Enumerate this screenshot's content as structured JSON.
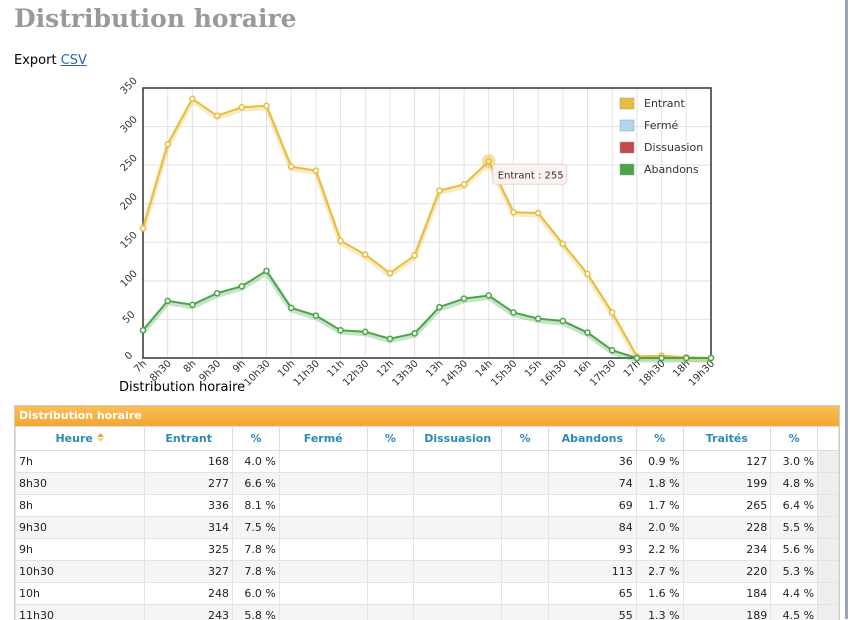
{
  "page": {
    "title": "Distribution horaire",
    "export_label": "Export",
    "export_link": "CSV"
  },
  "chart_data": {
    "type": "line",
    "x_label": "Distribution horaire",
    "tooltip": "Entrant : 255",
    "categories": [
      "7h",
      "8h30",
      "8h",
      "9h30",
      "9h",
      "10h30",
      "10h",
      "11h30",
      "11h",
      "12h30",
      "12h",
      "13h30",
      "13h",
      "14h30",
      "14h",
      "15h30",
      "15h",
      "16h30",
      "16h",
      "17h30",
      "17h",
      "18h30",
      "18h",
      "19h30"
    ],
    "series": [
      {
        "name": "Entrant",
        "color": "#e8bd3c",
        "values": [
          168,
          277,
          336,
          314,
          325,
          327,
          248,
          243,
          152,
          134,
          110,
          133,
          217,
          225,
          255,
          189,
          188,
          148,
          109,
          59,
          2,
          3,
          1,
          0
        ]
      },
      {
        "name": "Fermé",
        "color": "#b3d6f2",
        "values": [
          null,
          null,
          null,
          null,
          null,
          null,
          null,
          null,
          null,
          null,
          null,
          null,
          null,
          null,
          null,
          null,
          null,
          null,
          null,
          null,
          null,
          null,
          null,
          null
        ]
      },
      {
        "name": "Dissuasion",
        "color": "#c8474a",
        "values": [
          null,
          null,
          null,
          null,
          null,
          null,
          null,
          null,
          null,
          null,
          null,
          null,
          null,
          null,
          null,
          null,
          null,
          null,
          null,
          null,
          null,
          null,
          null,
          null
        ]
      },
      {
        "name": "Abandons",
        "color": "#4aa54a",
        "values": [
          36,
          74,
          69,
          84,
          93,
          113,
          65,
          55,
          36,
          34,
          25,
          32,
          66,
          77,
          81,
          59,
          51,
          48,
          33,
          10,
          0,
          0,
          0,
          0
        ]
      }
    ],
    "ylim": [
      0,
      350
    ],
    "yticks": [
      0,
      50,
      100,
      150,
      200,
      250,
      300,
      350
    ],
    "grid": true,
    "legend": "top-right"
  },
  "table": {
    "title": "Distribution horaire",
    "headers": [
      "Heure",
      "Entrant",
      "%",
      "Fermé",
      "%",
      "Dissuasion",
      "%",
      "Abandons",
      "%",
      "Traités",
      "%"
    ],
    "rows": [
      [
        "7h",
        168,
        "4.0 %",
        null,
        null,
        null,
        null,
        36,
        "0.9 %",
        127,
        "3.0 %"
      ],
      [
        "8h30",
        277,
        "6.6 %",
        null,
        null,
        null,
        null,
        74,
        "1.8 %",
        199,
        "4.8 %"
      ],
      [
        "8h",
        336,
        "8.1 %",
        null,
        null,
        null,
        null,
        69,
        "1.7 %",
        265,
        "6.4 %"
      ],
      [
        "9h30",
        314,
        "7.5 %",
        null,
        null,
        null,
        null,
        84,
        "2.0 %",
        228,
        "5.5 %"
      ],
      [
        "9h",
        325,
        "7.8 %",
        null,
        null,
        null,
        null,
        93,
        "2.2 %",
        234,
        "5.6 %"
      ],
      [
        "10h30",
        327,
        "7.8 %",
        null,
        null,
        null,
        null,
        113,
        "2.7 %",
        220,
        "5.3 %"
      ],
      [
        "10h",
        248,
        "6.0 %",
        null,
        null,
        null,
        null,
        65,
        "1.6 %",
        184,
        "4.4 %"
      ],
      [
        "11h30",
        243,
        "5.8 %",
        null,
        null,
        null,
        null,
        55,
        "1.3 %",
        189,
        "4.5 %"
      ]
    ]
  }
}
